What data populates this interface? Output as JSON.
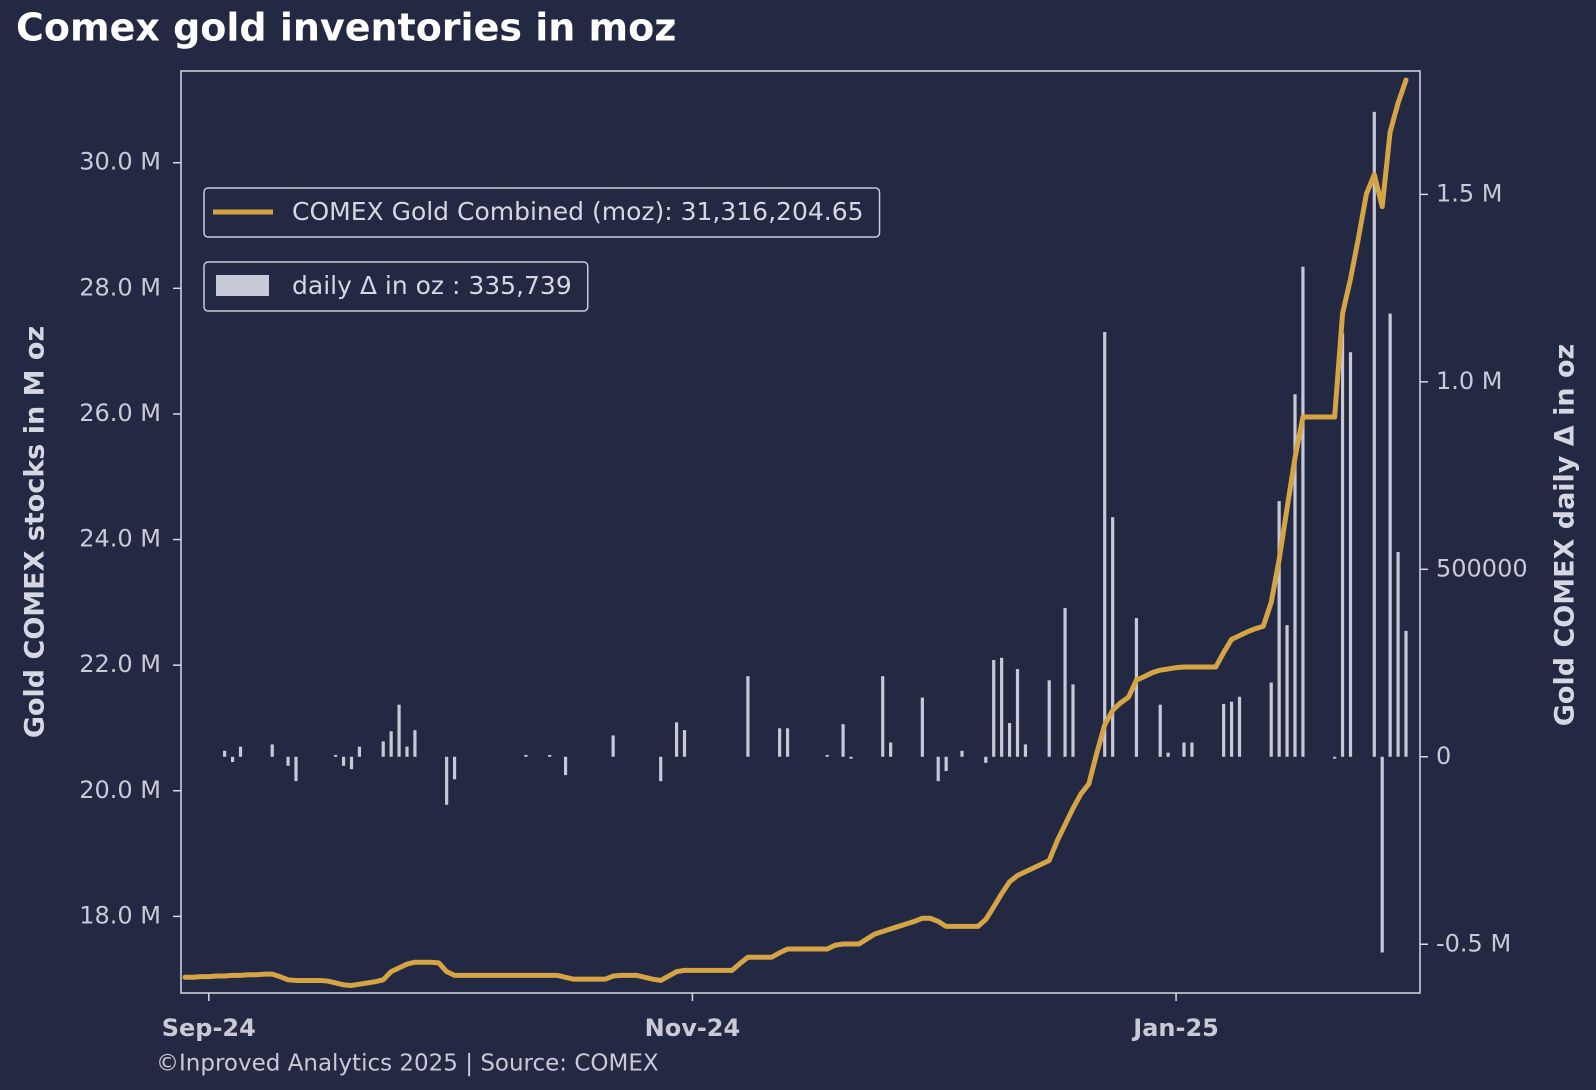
{
  "chart_data": {
    "type": "line",
    "title": "Comex gold inventories in moz",
    "footer": "©Inproved Analytics 2025 | Source: COMEX",
    "ylabel": "Gold COMEX stocks in M oz",
    "y2label": "Gold COMEX daily Δ in oz",
    "legend": "upper left",
    "grid": false,
    "categories": [
      null,
      null,
      null,
      "Sep-24",
      null,
      null,
      null,
      null,
      null,
      null,
      null,
      null,
      null,
      null,
      null,
      null,
      null,
      null,
      null,
      null,
      null,
      null,
      null,
      null,
      null,
      null,
      null,
      null,
      null,
      null,
      null,
      null,
      null,
      null,
      null,
      null,
      null,
      null,
      null,
      null,
      null,
      null,
      null,
      null,
      null,
      null,
      null,
      null,
      null,
      null,
      null,
      null,
      null,
      null,
      null,
      null,
      null,
      null,
      null,
      null,
      null,
      null,
      null,
      null,
      "Nov-24",
      null,
      null,
      null,
      null,
      null,
      null,
      null,
      null,
      null,
      null,
      null,
      null,
      null,
      null,
      null,
      null,
      null,
      null,
      null,
      null,
      null,
      null,
      null,
      null,
      null,
      null,
      null,
      null,
      null,
      null,
      null,
      null,
      null,
      null,
      null,
      null,
      null,
      null,
      null,
      null,
      null,
      null,
      null,
      null,
      null,
      null,
      null,
      null,
      null,
      null,
      null,
      null,
      null,
      null,
      null,
      null,
      null,
      null,
      null,
      null,
      "Jan-25",
      null,
      null,
      null,
      null,
      null,
      null,
      null,
      null,
      null,
      null,
      null,
      null,
      null,
      null,
      null,
      null,
      null,
      null,
      null,
      null,
      null,
      null,
      null,
      null,
      null,
      null,
      null,
      null,
      null
    ],
    "series": [
      {
        "name": "COMEX Gold Combined (moz): 31,316,204.65",
        "color": "#d4a445",
        "values": [
          17.03,
          17.03,
          17.04,
          17.04,
          17.05,
          17.05,
          17.06,
          17.06,
          17.07,
          17.07,
          17.08,
          17.08,
          17.04,
          16.99,
          16.98,
          16.98,
          16.98,
          16.98,
          16.97,
          16.94,
          16.91,
          16.9,
          16.92,
          16.94,
          16.96,
          16.99,
          17.12,
          17.18,
          17.24,
          17.27,
          17.27,
          17.27,
          17.26,
          17.12,
          17.06,
          17.06,
          17.06,
          17.06,
          17.06,
          17.06,
          17.06,
          17.06,
          17.06,
          17.06,
          17.06,
          17.06,
          17.06,
          17.06,
          17.03,
          17.0,
          17.0,
          17.0,
          17.0,
          17.0,
          17.05,
          17.06,
          17.06,
          17.06,
          17.03,
          17.0,
          16.98,
          17.05,
          17.12,
          17.14,
          17.14,
          17.14,
          17.14,
          17.14,
          17.14,
          17.14,
          17.25,
          17.35,
          17.35,
          17.35,
          17.35,
          17.42,
          17.48,
          17.48,
          17.48,
          17.48,
          17.48,
          17.48,
          17.54,
          17.56,
          17.56,
          17.56,
          17.64,
          17.72,
          17.76,
          17.8,
          17.84,
          17.88,
          17.92,
          17.97,
          17.97,
          17.92,
          17.84,
          17.84,
          17.84,
          17.84,
          17.84,
          17.95,
          18.15,
          18.36,
          18.55,
          18.65,
          18.71,
          18.77,
          18.83,
          18.89,
          19.2,
          19.46,
          19.72,
          19.95,
          20.11,
          20.6,
          21.05,
          21.28,
          21.4,
          21.49,
          21.76,
          21.82,
          21.88,
          21.92,
          21.94,
          21.96,
          21.97,
          21.97,
          21.97,
          21.97,
          21.97,
          22.2,
          22.41,
          22.47,
          22.53,
          22.58,
          22.62,
          23.0,
          23.68,
          24.5,
          25.3,
          25.95,
          25.95,
          25.95,
          25.95,
          25.95,
          27.6,
          28.15,
          28.8,
          29.5,
          29.81,
          29.3,
          30.49,
          30.95,
          31.31620465
        ]
      },
      {
        "name": "daily Δ in oz : 335,739",
        "type": "bar",
        "axis": "y2",
        "color": "#c8c9d6",
        "values": [
          0,
          0,
          0,
          0,
          0,
          16000,
          -14000,
          27000,
          0,
          0,
          0,
          33000,
          0,
          -24000,
          -65000,
          0,
          0,
          0,
          0,
          5000,
          -24000,
          -33000,
          27000,
          0,
          0,
          41000,
          68000,
          139000,
          27000,
          71000,
          0,
          0,
          0,
          -128000,
          -60000,
          0,
          0,
          0,
          0,
          0,
          0,
          0,
          0,
          5000,
          0,
          0,
          5000,
          0,
          -49000,
          0,
          0,
          0,
          0,
          0,
          57000,
          0,
          0,
          0,
          0,
          0,
          -65000,
          0,
          92000,
          71000,
          0,
          0,
          0,
          0,
          0,
          0,
          0,
          215000,
          0,
          0,
          0,
          76000,
          76000,
          0,
          0,
          0,
          0,
          5000,
          0,
          87000,
          -5000,
          0,
          0,
          0,
          215000,
          38000,
          0,
          0,
          0,
          158000,
          0,
          -65000,
          -38000,
          0,
          16000,
          0,
          0,
          -16000,
          258000,
          264000,
          90000,
          234000,
          33000,
          0,
          0,
          204000,
          0,
          397000,
          193000,
          0,
          0,
          0,
          1133000,
          639000,
          0,
          0,
          370000,
          0,
          0,
          139000,
          11000,
          0,
          38000,
          38000,
          0,
          0,
          0,
          141000,
          147000,
          160000,
          0,
          0,
          0,
          198000,
          682000,
          351000,
          967000,
          1307000,
          0,
          0,
          0,
          -5000,
          1130000,
          1079000,
          0,
          0,
          1720000,
          -522000,
          1182000,
          546000,
          335739
        ]
      }
    ],
    "ylim": [
      16.78,
      31.46
    ],
    "yticks": [
      {
        "value": 18,
        "label": "18.0 M"
      },
      {
        "value": 20,
        "label": "20.0 M"
      },
      {
        "value": 22,
        "label": "22.0 M"
      },
      {
        "value": 24,
        "label": "24.0 M"
      },
      {
        "value": 26,
        "label": "26.0 M"
      },
      {
        "value": 28,
        "label": "28.0 M"
      },
      {
        "value": 30,
        "label": "30.0 M"
      }
    ],
    "y2lim": [
      -630000,
      1829000
    ],
    "y2ticks": [
      {
        "value": -500000,
        "label": "-0.5 M"
      },
      0,
      500000,
      {
        "value": 1000000,
        "label": "1.0 M"
      },
      {
        "value": 1500000,
        "label": "1.5 M"
      }
    ]
  }
}
